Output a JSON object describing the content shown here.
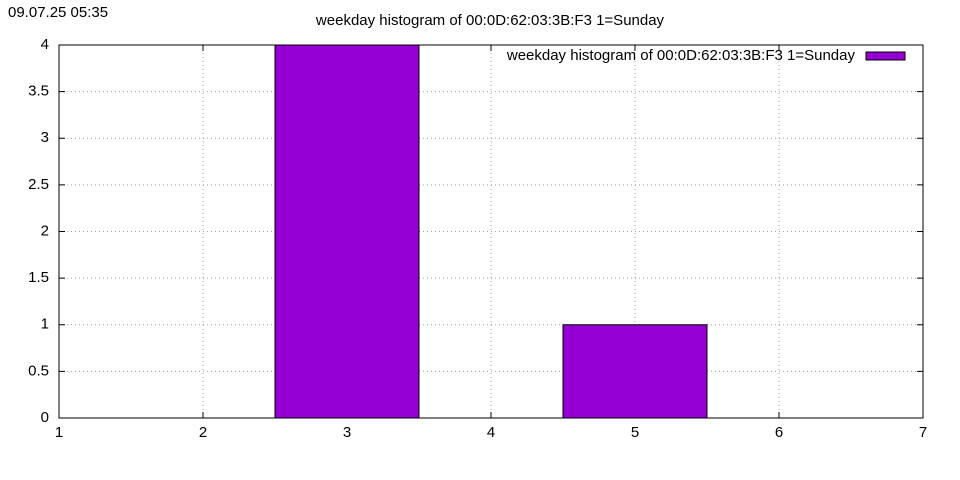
{
  "timestamp": "09.07.25 05:35",
  "chart_data": {
    "type": "bar",
    "title": "weekday histogram of 00:0D:62:03:3B:F3 1=Sunday",
    "x": [
      3,
      5
    ],
    "series": [
      {
        "name": "weekday histogram of 00:0D:62:03:3B:F3 1=Sunday",
        "color": "#9400d3",
        "values": [
          4,
          1
        ]
      }
    ],
    "xlim": [
      1,
      7
    ],
    "xticks": [
      1,
      2,
      3,
      4,
      5,
      6,
      7
    ],
    "ylim": [
      0,
      4
    ],
    "yticks": [
      0,
      0.5,
      1,
      1.5,
      2,
      2.5,
      3,
      3.5,
      4
    ],
    "grid": true,
    "legend": "top-right"
  }
}
